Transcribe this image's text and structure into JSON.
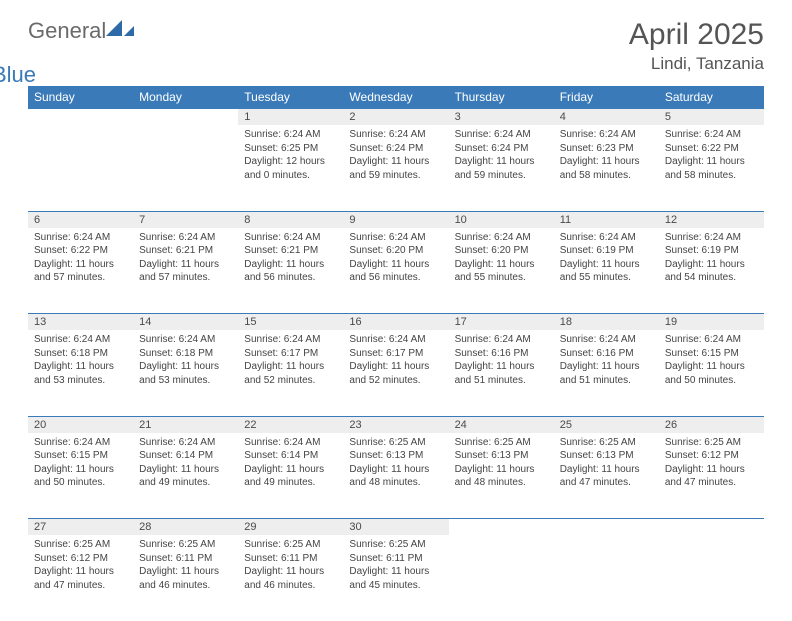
{
  "brand": {
    "part1": "General",
    "part2": "Blue"
  },
  "title": "April 2025",
  "location": "Lindi, Tanzania",
  "colors": {
    "header_bg": "#3a7ab8",
    "header_text": "#ffffff",
    "daynum_bg": "#eeeeee",
    "border": "#3a7ab8",
    "title_color": "#555555",
    "body_text": "#444444"
  },
  "weekdays": [
    "Sunday",
    "Monday",
    "Tuesday",
    "Wednesday",
    "Thursday",
    "Friday",
    "Saturday"
  ],
  "weeks": [
    {
      "nums": [
        "",
        "",
        "1",
        "2",
        "3",
        "4",
        "5"
      ],
      "cells": [
        {
          "empty": true
        },
        {
          "empty": true
        },
        {
          "sr": "Sunrise: 6:24 AM",
          "ss": "Sunset: 6:25 PM",
          "dl": "Daylight: 12 hours and 0 minutes."
        },
        {
          "sr": "Sunrise: 6:24 AM",
          "ss": "Sunset: 6:24 PM",
          "dl": "Daylight: 11 hours and 59 minutes."
        },
        {
          "sr": "Sunrise: 6:24 AM",
          "ss": "Sunset: 6:24 PM",
          "dl": "Daylight: 11 hours and 59 minutes."
        },
        {
          "sr": "Sunrise: 6:24 AM",
          "ss": "Sunset: 6:23 PM",
          "dl": "Daylight: 11 hours and 58 minutes."
        },
        {
          "sr": "Sunrise: 6:24 AM",
          "ss": "Sunset: 6:22 PM",
          "dl": "Daylight: 11 hours and 58 minutes."
        }
      ]
    },
    {
      "nums": [
        "6",
        "7",
        "8",
        "9",
        "10",
        "11",
        "12"
      ],
      "cells": [
        {
          "sr": "Sunrise: 6:24 AM",
          "ss": "Sunset: 6:22 PM",
          "dl": "Daylight: 11 hours and 57 minutes."
        },
        {
          "sr": "Sunrise: 6:24 AM",
          "ss": "Sunset: 6:21 PM",
          "dl": "Daylight: 11 hours and 57 minutes."
        },
        {
          "sr": "Sunrise: 6:24 AM",
          "ss": "Sunset: 6:21 PM",
          "dl": "Daylight: 11 hours and 56 minutes."
        },
        {
          "sr": "Sunrise: 6:24 AM",
          "ss": "Sunset: 6:20 PM",
          "dl": "Daylight: 11 hours and 56 minutes."
        },
        {
          "sr": "Sunrise: 6:24 AM",
          "ss": "Sunset: 6:20 PM",
          "dl": "Daylight: 11 hours and 55 minutes."
        },
        {
          "sr": "Sunrise: 6:24 AM",
          "ss": "Sunset: 6:19 PM",
          "dl": "Daylight: 11 hours and 55 minutes."
        },
        {
          "sr": "Sunrise: 6:24 AM",
          "ss": "Sunset: 6:19 PM",
          "dl": "Daylight: 11 hours and 54 minutes."
        }
      ]
    },
    {
      "nums": [
        "13",
        "14",
        "15",
        "16",
        "17",
        "18",
        "19"
      ],
      "cells": [
        {
          "sr": "Sunrise: 6:24 AM",
          "ss": "Sunset: 6:18 PM",
          "dl": "Daylight: 11 hours and 53 minutes."
        },
        {
          "sr": "Sunrise: 6:24 AM",
          "ss": "Sunset: 6:18 PM",
          "dl": "Daylight: 11 hours and 53 minutes."
        },
        {
          "sr": "Sunrise: 6:24 AM",
          "ss": "Sunset: 6:17 PM",
          "dl": "Daylight: 11 hours and 52 minutes."
        },
        {
          "sr": "Sunrise: 6:24 AM",
          "ss": "Sunset: 6:17 PM",
          "dl": "Daylight: 11 hours and 52 minutes."
        },
        {
          "sr": "Sunrise: 6:24 AM",
          "ss": "Sunset: 6:16 PM",
          "dl": "Daylight: 11 hours and 51 minutes."
        },
        {
          "sr": "Sunrise: 6:24 AM",
          "ss": "Sunset: 6:16 PM",
          "dl": "Daylight: 11 hours and 51 minutes."
        },
        {
          "sr": "Sunrise: 6:24 AM",
          "ss": "Sunset: 6:15 PM",
          "dl": "Daylight: 11 hours and 50 minutes."
        }
      ]
    },
    {
      "nums": [
        "20",
        "21",
        "22",
        "23",
        "24",
        "25",
        "26"
      ],
      "cells": [
        {
          "sr": "Sunrise: 6:24 AM",
          "ss": "Sunset: 6:15 PM",
          "dl": "Daylight: 11 hours and 50 minutes."
        },
        {
          "sr": "Sunrise: 6:24 AM",
          "ss": "Sunset: 6:14 PM",
          "dl": "Daylight: 11 hours and 49 minutes."
        },
        {
          "sr": "Sunrise: 6:24 AM",
          "ss": "Sunset: 6:14 PM",
          "dl": "Daylight: 11 hours and 49 minutes."
        },
        {
          "sr": "Sunrise: 6:25 AM",
          "ss": "Sunset: 6:13 PM",
          "dl": "Daylight: 11 hours and 48 minutes."
        },
        {
          "sr": "Sunrise: 6:25 AM",
          "ss": "Sunset: 6:13 PM",
          "dl": "Daylight: 11 hours and 48 minutes."
        },
        {
          "sr": "Sunrise: 6:25 AM",
          "ss": "Sunset: 6:13 PM",
          "dl": "Daylight: 11 hours and 47 minutes."
        },
        {
          "sr": "Sunrise: 6:25 AM",
          "ss": "Sunset: 6:12 PM",
          "dl": "Daylight: 11 hours and 47 minutes."
        }
      ]
    },
    {
      "nums": [
        "27",
        "28",
        "29",
        "30",
        "",
        "",
        ""
      ],
      "cells": [
        {
          "sr": "Sunrise: 6:25 AM",
          "ss": "Sunset: 6:12 PM",
          "dl": "Daylight: 11 hours and 47 minutes."
        },
        {
          "sr": "Sunrise: 6:25 AM",
          "ss": "Sunset: 6:11 PM",
          "dl": "Daylight: 11 hours and 46 minutes."
        },
        {
          "sr": "Sunrise: 6:25 AM",
          "ss": "Sunset: 6:11 PM",
          "dl": "Daylight: 11 hours and 46 minutes."
        },
        {
          "sr": "Sunrise: 6:25 AM",
          "ss": "Sunset: 6:11 PM",
          "dl": "Daylight: 11 hours and 45 minutes."
        },
        {
          "empty": true
        },
        {
          "empty": true
        },
        {
          "empty": true
        }
      ]
    }
  ]
}
